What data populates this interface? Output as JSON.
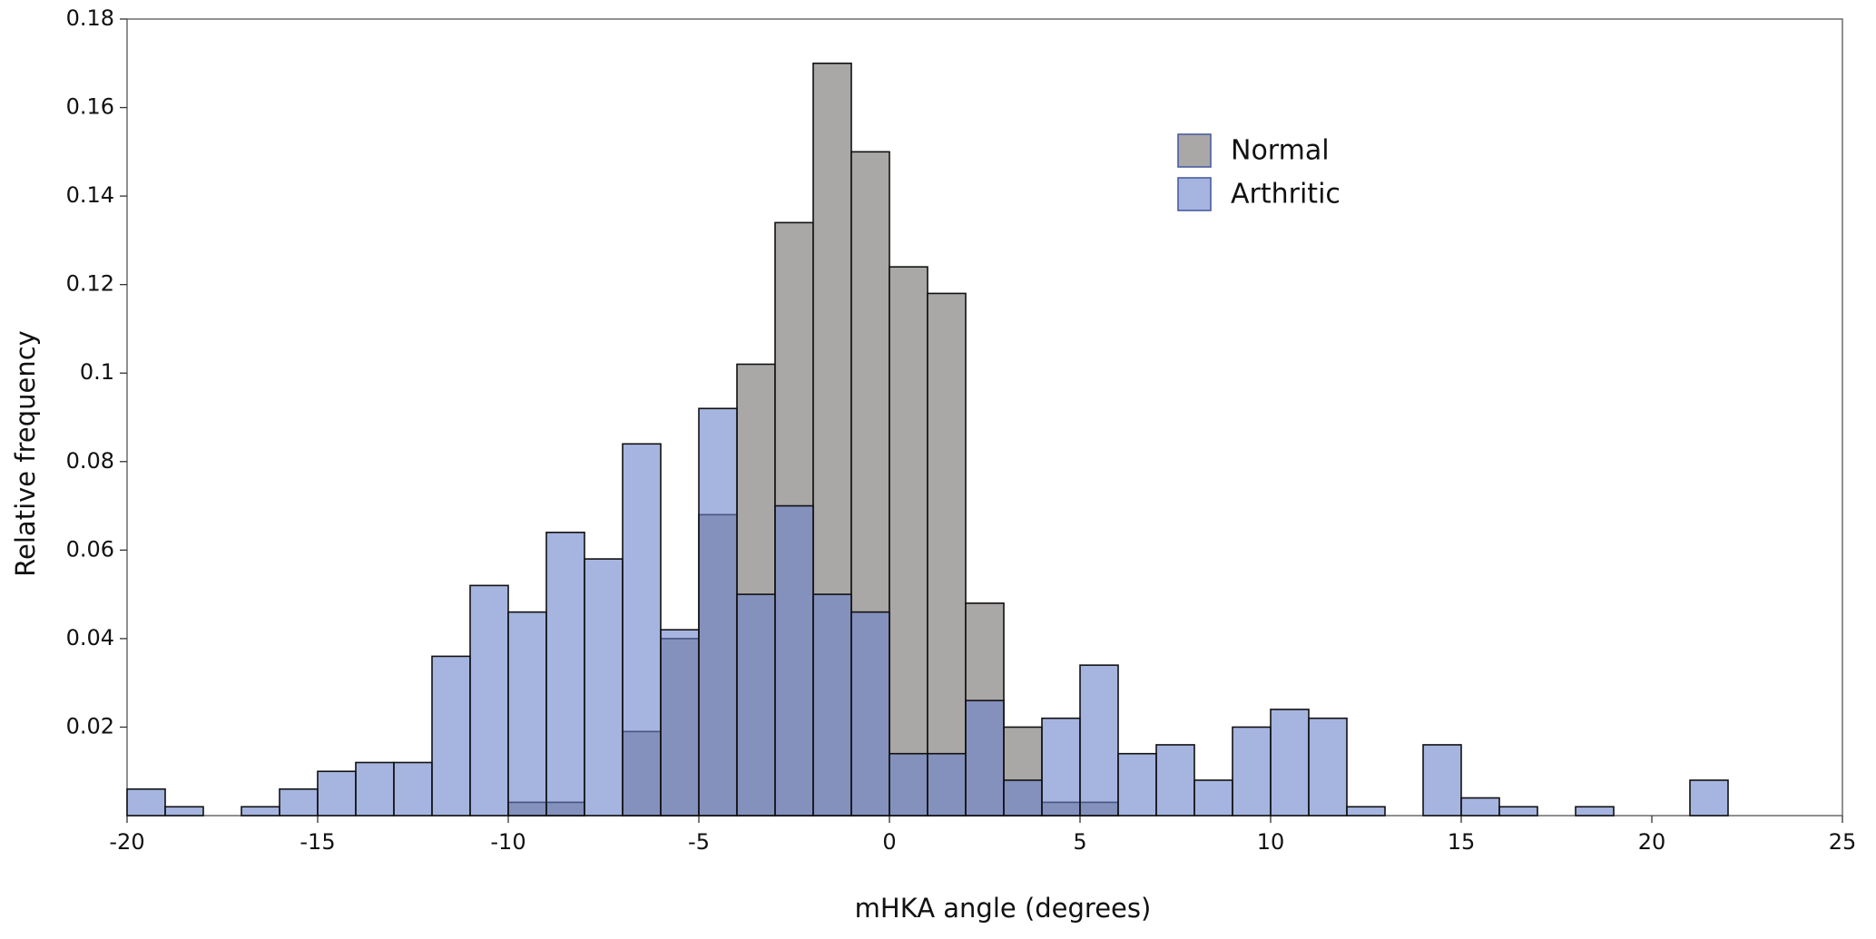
{
  "chart_data": {
    "type": "histogram",
    "x_label": "mHKA angle (degrees)",
    "y_label": "Relative frequency",
    "bins": [
      -20,
      -19,
      -18,
      -17,
      -16,
      -15,
      -14,
      -13,
      -12,
      -11,
      -10,
      -9,
      -8,
      -7,
      -6,
      -5,
      -4,
      -3,
      -2,
      -1,
      0,
      1,
      2,
      3,
      4,
      5,
      6,
      7,
      8,
      9,
      10,
      11,
      12,
      13,
      14,
      15,
      16,
      17,
      18,
      19,
      20,
      21,
      22
    ],
    "series": [
      {
        "name": "Normal",
        "color": "#aaa7a7",
        "values": [
          0,
          0,
          0,
          0,
          0,
          0,
          0,
          0,
          0,
          0,
          0.003,
          0.003,
          0,
          0.019,
          0.04,
          0.068,
          0.102,
          0.134,
          0.17,
          0.15,
          0.124,
          0.118,
          0.048,
          0.02,
          0.003,
          0.003,
          0,
          0,
          0,
          0,
          0,
          0,
          0,
          0,
          0,
          0,
          0,
          0,
          0,
          0,
          0,
          0
        ]
      },
      {
        "name": "Arthritic",
        "color": "#6b82cb",
        "values": [
          0.006,
          0.002,
          0,
          0.002,
          0.006,
          0.01,
          0.012,
          0.012,
          0.036,
          0.052,
          0.046,
          0.064,
          0.058,
          0.084,
          0.042,
          0.092,
          0.05,
          0.07,
          0.05,
          0.046,
          0.014,
          0.014,
          0.026,
          0.008,
          0.022,
          0.034,
          0.014,
          0.016,
          0.008,
          0.02,
          0.024,
          0.022,
          0.002,
          0,
          0.016,
          0.004,
          0.002,
          0,
          0.002,
          0,
          0,
          0.008
        ]
      }
    ],
    "xlim": [
      -20,
      25
    ],
    "xticks": [
      -20,
      -15,
      -10,
      -5,
      0,
      5,
      10,
      15,
      20,
      25
    ],
    "ylim": [
      0,
      0.18
    ],
    "yticks": [
      0.02,
      0.04,
      0.06,
      0.08,
      0.1,
      0.12,
      0.14,
      0.16,
      0.18
    ],
    "legend": "upper-right"
  }
}
